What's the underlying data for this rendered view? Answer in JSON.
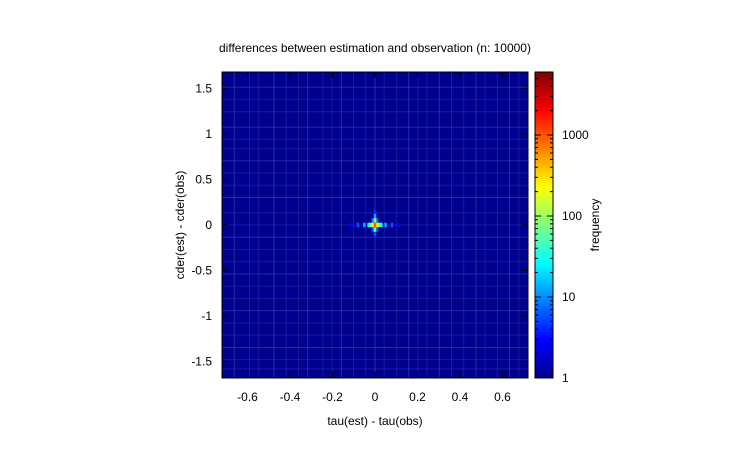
{
  "chart_data": {
    "type": "heatmap",
    "title": "differences between estimation and observation (n: 10000)",
    "xlabel": "tau(est) - tau(obs)",
    "ylabel": "cder(est) - cder(obs)",
    "colorbar_label": "frequency",
    "xlim": [
      -0.72,
      0.72
    ],
    "ylim": [
      -1.68,
      1.68
    ],
    "x_ticks": [
      -0.6,
      -0.4,
      -0.2,
      0,
      0.2,
      0.4,
      0.6
    ],
    "x_tick_labels": [
      "-0.6",
      "-0.4",
      "-0.2",
      "0",
      "0.2",
      "0.4",
      "0.6"
    ],
    "y_ticks": [
      -1.5,
      -1,
      -0.5,
      0,
      0.5,
      1,
      1.5
    ],
    "y_tick_labels": [
      "-1.5",
      "-1",
      "-0.5",
      "0",
      "0.5",
      "1",
      "1.5"
    ],
    "color_scale": "log",
    "color_range": [
      1,
      6000
    ],
    "colorbar_ticks": [
      1,
      10,
      100,
      1000
    ],
    "colorbar_tick_labels": [
      "1",
      "10",
      "100",
      "1000"
    ],
    "colormap": "jet",
    "grid": false,
    "background_value": 1,
    "cells": [
      {
        "x": 0.0,
        "y": 0.0,
        "value": 1000
      },
      {
        "x": -0.01,
        "y": 0.0,
        "value": 250
      },
      {
        "x": 0.01,
        "y": 0.0,
        "value": 250
      },
      {
        "x": -0.02,
        "y": 0.0,
        "value": 60
      },
      {
        "x": 0.02,
        "y": 0.0,
        "value": 60
      },
      {
        "x": -0.03,
        "y": 0.0,
        "value": 25
      },
      {
        "x": 0.03,
        "y": 0.0,
        "value": 25
      },
      {
        "x": -0.05,
        "y": 0.0,
        "value": 12
      },
      {
        "x": 0.05,
        "y": 0.0,
        "value": 12
      },
      {
        "x": -0.08,
        "y": 0.0,
        "value": 6
      },
      {
        "x": 0.08,
        "y": 0.0,
        "value": 6
      },
      {
        "x": -0.11,
        "y": 0.0,
        "value": 3
      },
      {
        "x": 0.11,
        "y": 0.0,
        "value": 3
      },
      {
        "x": 0.0,
        "y": 0.05,
        "value": 80
      },
      {
        "x": 0.0,
        "y": -0.05,
        "value": 60
      },
      {
        "x": 0.0,
        "y": 0.1,
        "value": 12
      },
      {
        "x": 0.0,
        "y": -0.1,
        "value": 6
      },
      {
        "x": 0.0,
        "y": 0.15,
        "value": 4
      },
      {
        "x": -0.01,
        "y": 0.05,
        "value": 8
      },
      {
        "x": 0.01,
        "y": 0.05,
        "value": 8
      },
      {
        "x": -0.01,
        "y": -0.05,
        "value": 6
      },
      {
        "x": 0.01,
        "y": -0.05,
        "value": 6
      }
    ],
    "cell_size": [
      0.012,
      0.05
    ]
  }
}
